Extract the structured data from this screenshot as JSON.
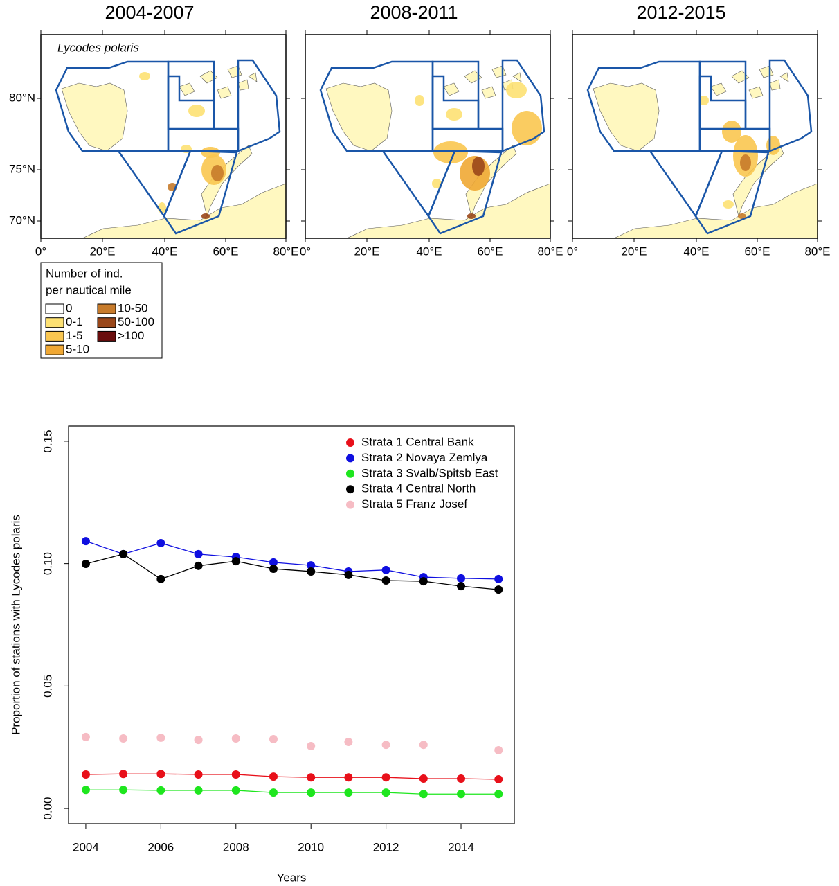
{
  "maps": {
    "panels": [
      {
        "title": "2004-2007"
      },
      {
        "title": "2008-2011"
      },
      {
        "title": "2012-2015"
      }
    ],
    "species": "Lycodes polaris",
    "lon_labels": [
      "0°",
      "20°E",
      "40°E",
      "60°E",
      "80°E"
    ],
    "lat_labels": [
      "80°N",
      "75°N",
      "70°N"
    ],
    "legend": {
      "title": [
        "Number of ind.",
        "per nautical mile"
      ],
      "items": [
        {
          "label": "0",
          "color": "#ffffff"
        },
        {
          "label": "0-1",
          "color": "#fde173"
        },
        {
          "label": "1-5",
          "color": "#f9c650"
        },
        {
          "label": "5-10",
          "color": "#f0a834"
        },
        {
          "label": "10-50",
          "color": "#c77b2b"
        },
        {
          "label": "50-100",
          "color": "#9a4719"
        },
        {
          "label": ">100",
          "color": "#6a0d0d"
        }
      ]
    }
  },
  "chart_data": {
    "type": "line",
    "x_label": "Years",
    "y_label": "Proportion of stations with Lycodes polaris",
    "x": [
      2004,
      2005,
      2006,
      2007,
      2008,
      2009,
      2010,
      2011,
      2012,
      2013,
      2014,
      2015
    ],
    "xlim": [
      2003.54,
      2015.42
    ],
    "xticks": [
      2004,
      2006,
      2008,
      2010,
      2012,
      2014
    ],
    "ylim": [
      -0.0062,
      0.1562
    ],
    "yticks": [
      {
        "value": 0,
        "label": "0.00"
      },
      0.05,
      {
        "value": 0.1,
        "label": "0.10"
      },
      0.15
    ],
    "series": [
      {
        "name": "Strata 1 Central Bank",
        "color": "#e8101a",
        "line": true,
        "values": [
          0.0139,
          0.0141,
          0.0141,
          0.0139,
          0.0139,
          0.013,
          0.0127,
          0.0127,
          0.0127,
          0.0122,
          0.0122,
          0.0119
        ]
      },
      {
        "name": "Strata 2 Novaya Zemlya",
        "color": "#0f0fe0",
        "line": true,
        "values": [
          0.1092,
          0.1039,
          0.1084,
          0.1039,
          0.1027,
          0.1005,
          0.0993,
          0.0968,
          0.0974,
          0.0945,
          0.094,
          0.0937
        ]
      },
      {
        "name": "Strata 3 Svalb/Spitsb East",
        "color": "#1ee61e",
        "line": true,
        "values": [
          0.0076,
          0.0076,
          0.0074,
          0.0074,
          0.0074,
          0.0065,
          0.0065,
          0.0065,
          0.0065,
          0.0059,
          0.0059,
          0.0059
        ]
      },
      {
        "name": "Strata 4 Central North",
        "color": "#000000",
        "line": true,
        "values": [
          0.0999,
          0.1039,
          0.0937,
          0.0991,
          0.101,
          0.0979,
          0.0968,
          0.0954,
          0.0931,
          0.0928,
          0.0908,
          0.0894
        ]
      },
      {
        "name": "Strata 5 Franz Josef",
        "color": "#f6bcc4",
        "line": false,
        "values": [
          0.0292,
          0.0286,
          0.0289,
          0.028,
          0.0286,
          0.0283,
          0.0255,
          0.0272,
          0.026,
          0.026,
          null,
          0.0238
        ]
      }
    ],
    "legend": "top-right"
  }
}
